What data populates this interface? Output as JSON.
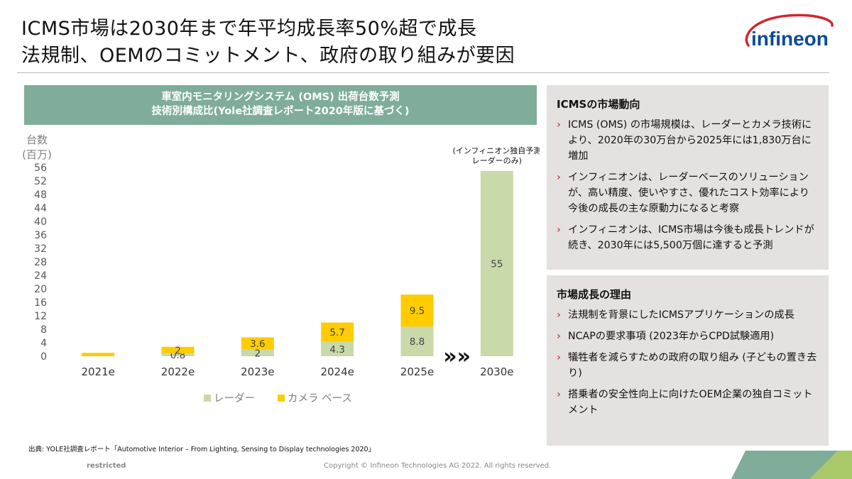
{
  "title": {
    "line1": "ICMS市場は2030年まで年平均成長率50%超で成長",
    "line2": "法規制、OEMのコミットメント、政府の取り組みが要因"
  },
  "logo": {
    "text": "infineon",
    "brand_color": "#0a4a96",
    "accent_color": "#d22630"
  },
  "chart_header": {
    "line1": "車室内モニタリングシステム (OMS) 出荷台数予測",
    "line2": "技術別構成比(Yole社調査レポート2020年版に基づく)"
  },
  "chart_data": {
    "type": "bar",
    "stacked": true,
    "ylabel": "台数\n(百万)",
    "ylabel_line1": "台数",
    "ylabel_line2": "(百万)",
    "ylim": [
      0,
      56
    ],
    "yticks": [
      0,
      4,
      8,
      12,
      16,
      20,
      24,
      28,
      32,
      36,
      40,
      44,
      48,
      52,
      56
    ],
    "categories": [
      "2021e",
      "2022e",
      "2023e",
      "2024e",
      "2025e",
      "2030e"
    ],
    "series": [
      {
        "name": "レーダー",
        "color": "#c9d9a9",
        "values": [
          0,
          0.8,
          2,
          4.3,
          8.8,
          55
        ],
        "labels": [
          "",
          "0.8",
          "2",
          "4.3",
          "8.8",
          "55"
        ]
      },
      {
        "name": "カメラ ベース",
        "color": "#ffcc00",
        "values": [
          1.0,
          2,
          3.6,
          5.7,
          9.5,
          0
        ],
        "labels": [
          "",
          "2",
          "3.6",
          "5.7",
          "9.5",
          ""
        ]
      }
    ],
    "annotation_line1": "(インフィニオン独自予測",
    "annotation_line2": "レーダーのみ)",
    "arrow_glyph": "»»",
    "legend_position": "bottom",
    "grid": false
  },
  "panel1": {
    "title": "ICMSの市場動向",
    "items": [
      "ICMS (OMS) の市場規模は、レーダーとカメラ技術により、2020年の30万台から2025年には1,830万台に増加",
      "インフィニオンは、レーダーベースのソリューションが、高い精度、使いやすさ、優れたコスト効率により今後の成長の主な原動力になると考察",
      "インフィニオンは、ICMS市場は今後も成長トレンドが続き、2030年には5,500万個に達すると予測"
    ]
  },
  "panel2": {
    "title": "市場成長の理由",
    "items": [
      "法規制を背景にしたICMSアプリケーションの成長",
      "NCAPの要求事項 (2023年からCPD試験適用)",
      "犠牲者を減らすための政府の取り組み (子どもの置き去り)",
      "搭乗者の安全性向上に向けたOEM企業の独自コミットメント"
    ]
  },
  "bullet_glyph": "›",
  "footer": {
    "source": "出典: YOLE社調査レポート「Automotive Interior – From Lighting, Sensing to Display technologies 2020」",
    "restricted": "restricted",
    "copyright": "Copyright © Infineon Technologies AG 2022. All rights reserved."
  }
}
